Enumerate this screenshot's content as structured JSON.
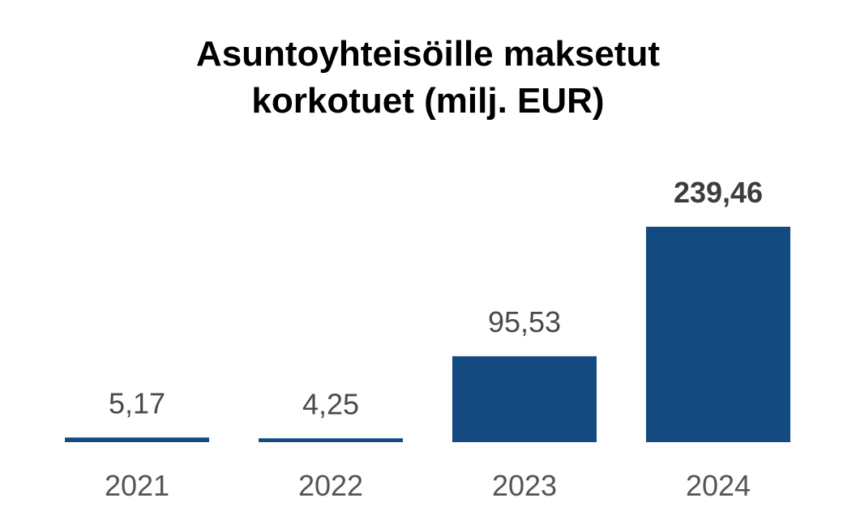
{
  "chart_data": {
    "type": "bar",
    "title_lines": [
      "Asuntoyhteisöille maksetut",
      "korkotuet (milj. EUR)"
    ],
    "categories": [
      "2021",
      "2022",
      "2023",
      "2024"
    ],
    "values": [
      5.17,
      4.25,
      95.53,
      239.46
    ],
    "value_labels": [
      "5,17",
      "4,25",
      "95,53",
      "239,46"
    ],
    "highlight_index": 3,
    "ylim": [
      0,
      239.46
    ],
    "bar_color": "#134a80",
    "grid": false,
    "legend": "none"
  }
}
